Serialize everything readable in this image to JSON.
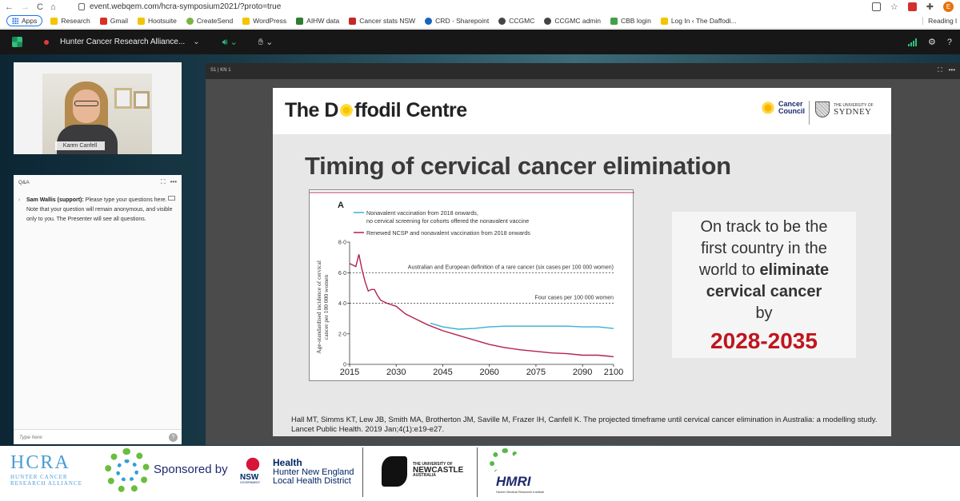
{
  "browser": {
    "url": "event.webqem.com/hcra-symposium2021/?proto=true",
    "nav_back": "←",
    "nav_forward": "→",
    "nav_reload": "C",
    "nav_home": "⌂",
    "profile_initial": "E",
    "bookmarks": [
      "Apps",
      "Research",
      "Gmail",
      "Hootsuite",
      "CreateSend",
      "WordPress",
      "AIHW data",
      "Cancer stats NSW",
      "CRD - Sharepoint",
      "CCGMC",
      "CCGMC admin",
      "CBB login",
      "Log In ‹ The Daffodi..."
    ],
    "reading_list": "Reading l"
  },
  "app": {
    "event_title": "Hunter Cancer Research Alliance...",
    "colors": {
      "accent": "#2ec27e",
      "record": "#e53935"
    }
  },
  "presenter": {
    "name": "Karen Canfell"
  },
  "qa": {
    "title": "Q&A",
    "sender": "Sam Wallis (support):",
    "message": "Please type your questions here. Note that your question will remain anonymous, and visible only to you. The Presenter will see all questions.",
    "input_placeholder": "Type here",
    "help_glyph": "?"
  },
  "presentation": {
    "slide_label": "S1 | KN 1",
    "header_title_pre": "The D",
    "header_title_post": "ffodil Centre",
    "cc_logo_line1": "Cancer",
    "cc_logo_line2": "Council",
    "usyd_line1": "THE UNIVERSITY OF",
    "usyd_line2": "SYDNEY",
    "heading": "Timing of cervical cancer elimination",
    "callout_l1": "On track to be the",
    "callout_l2": "first country in the",
    "callout_l3a": "world to ",
    "callout_l3b": "eliminate",
    "callout_l4": "cervical cancer",
    "callout_l5": "by",
    "callout_years": "2028-2035",
    "citation": "Hall MT, Simms KT, Lew JB, Smith MA, Brotherton JM, Saville M, Frazer IH, Canfell K. The projected timeframe until cervical cancer elimination in Australia: a modelling study. Lancet Public Health. 2019 Jan;4(1):e19-e27."
  },
  "chart_data": {
    "type": "line",
    "panel_label": "A",
    "ylabel": "Age-standardised incidence of cervical cancer per 100 000 women",
    "xlim": [
      2015,
      2100
    ],
    "ylim": [
      0,
      8
    ],
    "xticks": [
      "2015",
      "2030",
      "2045",
      "2060",
      "2075",
      "2090",
      "2100"
    ],
    "yticks": [
      "0",
      "2·0",
      "4·0",
      "6·0",
      "8·0"
    ],
    "reference_lines": [
      {
        "y": 6,
        "label": "Australian and European definition of a rare cancer (six cases per 100 000 women)"
      },
      {
        "y": 4,
        "label": "Four cases per 100 000 women"
      }
    ],
    "series": [
      {
        "name": "Nonavalent vaccination from 2018 onwards, no cervical screening for cohorts offered the nonavalent vaccine",
        "color": "#3aaed8",
        "x": [
          2041,
          2045,
          2050,
          2055,
          2060,
          2065,
          2070,
          2075,
          2080,
          2085,
          2090,
          2095,
          2100
        ],
        "y": [
          2.7,
          2.45,
          2.3,
          2.35,
          2.45,
          2.5,
          2.5,
          2.5,
          2.5,
          2.5,
          2.45,
          2.45,
          2.35
        ]
      },
      {
        "name": "Renewed NCSP and nonavalent vaccination from 2018 onwards",
        "color": "#b3214f",
        "x": [
          2015,
          2017,
          2018,
          2019,
          2020,
          2021,
          2022,
          2023,
          2024,
          2025,
          2027,
          2030,
          2033,
          2036,
          2040,
          2045,
          2050,
          2055,
          2060,
          2065,
          2070,
          2075,
          2080,
          2085,
          2090,
          2095,
          2100
        ],
        "y": [
          6.6,
          6.4,
          7.2,
          6.2,
          5.4,
          4.8,
          4.9,
          4.9,
          4.5,
          4.2,
          4.0,
          3.8,
          3.3,
          3.0,
          2.6,
          2.2,
          1.9,
          1.6,
          1.3,
          1.1,
          0.95,
          0.85,
          0.75,
          0.7,
          0.6,
          0.6,
          0.5
        ]
      }
    ]
  },
  "sponsor": {
    "hcra_big": "HCRA",
    "hcra_small1": "HUNTER CANCER",
    "hcra_small2": "RESEARCH ALLIANCE",
    "sponsored_by": "Sponsored by",
    "nsw": "NSW",
    "nsw_gov": "GOVERNMENT",
    "health_l1": "Health",
    "health_l2": "Hunter New England",
    "health_l3": "Local Health District",
    "uon_l1": "THE UNIVERSITY OF",
    "uon_l2": "NEWCASTLE",
    "uon_l3": "AUSTRALIA",
    "hmri": "HMRI",
    "hmri_sub": "Hunter Medical Research Institute"
  }
}
